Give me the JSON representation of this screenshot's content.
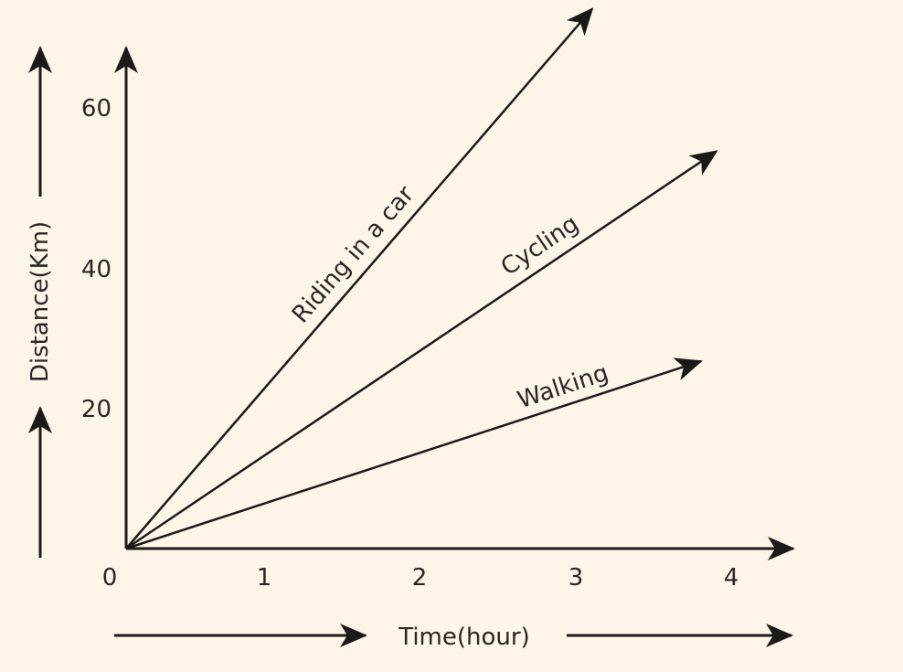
{
  "chart_data": {
    "type": "line",
    "xlabel": "Time(hour)",
    "ylabel": "Distance(Km)",
    "xlim": [
      0,
      4
    ],
    "ylim": [
      0,
      60
    ],
    "x_ticks": [
      "0",
      "1",
      "2",
      "3",
      "4"
    ],
    "y_ticks": [
      "20",
      "40",
      "60"
    ],
    "grid": false,
    "colors": {
      "background": "#fdf5e8",
      "ink": "#1c1a18"
    },
    "series": [
      {
        "name": "Riding in a car",
        "points": [
          [
            0,
            0
          ],
          [
            3.0,
            72
          ]
        ]
      },
      {
        "name": "Cycling",
        "points": [
          [
            0,
            0
          ],
          [
            3.8,
            53
          ]
        ]
      },
      {
        "name": "Walking",
        "points": [
          [
            0,
            0
          ],
          [
            3.7,
            25
          ]
        ]
      }
    ]
  }
}
